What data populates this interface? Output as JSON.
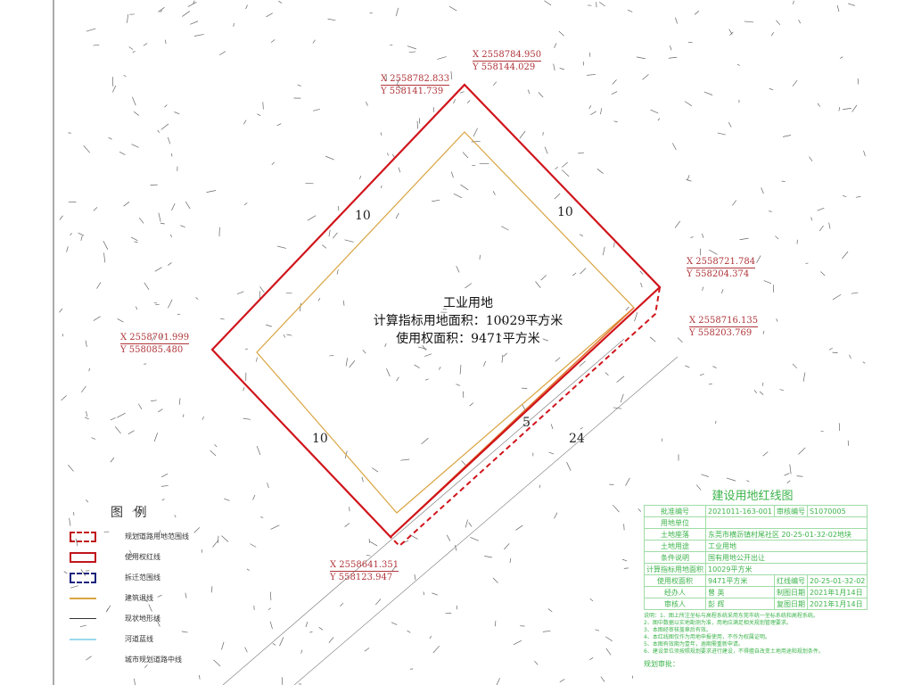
{
  "map": {
    "land_use": "工业用地",
    "calc_area": "计算指标用地面积：10029平方米",
    "use_area": "使用权面积：9471平方米",
    "setbacks": [
      "10",
      "10",
      "10",
      "5",
      "24"
    ],
    "coordinates": [
      {
        "x": "X 2558784.950",
        "y": "Y 558144.029"
      },
      {
        "x": "X 2558782.833",
        "y": "Y 558141.739"
      },
      {
        "x": "X 2558721.784",
        "y": "Y 558204.374"
      },
      {
        "x": "X 2558716.135",
        "y": "Y 558203.769"
      },
      {
        "x": "X 2558701.999",
        "y": "Y 558085.480"
      },
      {
        "x": "X 2558641.351",
        "y": "Y 558123.947"
      }
    ],
    "colors": {
      "red_line": "#d0141b",
      "setback": "#d9a441",
      "title_block": "#3cb44b",
      "coord_text": "#b0363b"
    }
  },
  "legend": {
    "title": "图 例",
    "items": [
      {
        "label": "规划道路用地范围线",
        "style": "red-dashed"
      },
      {
        "label": "使用权红线",
        "style": "red-solid"
      },
      {
        "label": "拆迁范围线",
        "style": "blue-dashed"
      },
      {
        "label": "建筑退线",
        "style": "orange-line"
      },
      {
        "label": "现状地形线",
        "style": "dark-line"
      },
      {
        "label": "河道蓝线",
        "style": "cyan-line"
      },
      {
        "label": "城市规划道路中线",
        "style": "none"
      }
    ]
  },
  "title_block": {
    "title": "建设用地红线图",
    "rows": [
      [
        "批准编号",
        "2021011-163-001",
        "审核编号",
        "S1070005"
      ],
      [
        "用地单位",
        "",
        "",
        ""
      ],
      [
        "土地座落",
        "东莞市横沥镇村尾社区 20-25-01-32-02地块",
        "",
        ""
      ],
      [
        "土地用途",
        "工业用地",
        "",
        ""
      ],
      [
        "条件说明",
        "国有用地公开出让",
        "",
        ""
      ],
      [
        "计算指标用地面积",
        "10029平方米",
        "",
        ""
      ],
      [
        "使用权面积",
        "9471平方米",
        "红线编号",
        "20-25-01-32-02"
      ],
      [
        "经办人",
        "曾 英",
        "制图日期",
        "2021年1月14日"
      ],
      [
        "审核人",
        "彭 辉",
        "复图日期",
        "2021年1月14日"
      ]
    ],
    "notes": [
      "说明：1、图上所注坐标与高程系统采用东莞市统一坐标系统和高程系统。",
      "2、图中数据以实地勘测为准，用地应满足相关规划管理要求。",
      "3、本图经审核盖章后有效。",
      "4、本红线图仅作为用地申报使用，不作为权属证明。",
      "5、本图有效期为壹年，逾期需重新申请。",
      "6、建设单位须按照规划要求进行建设，不得擅自改变土地用途和规划条件。"
    ],
    "seal_label": "规划审批："
  }
}
